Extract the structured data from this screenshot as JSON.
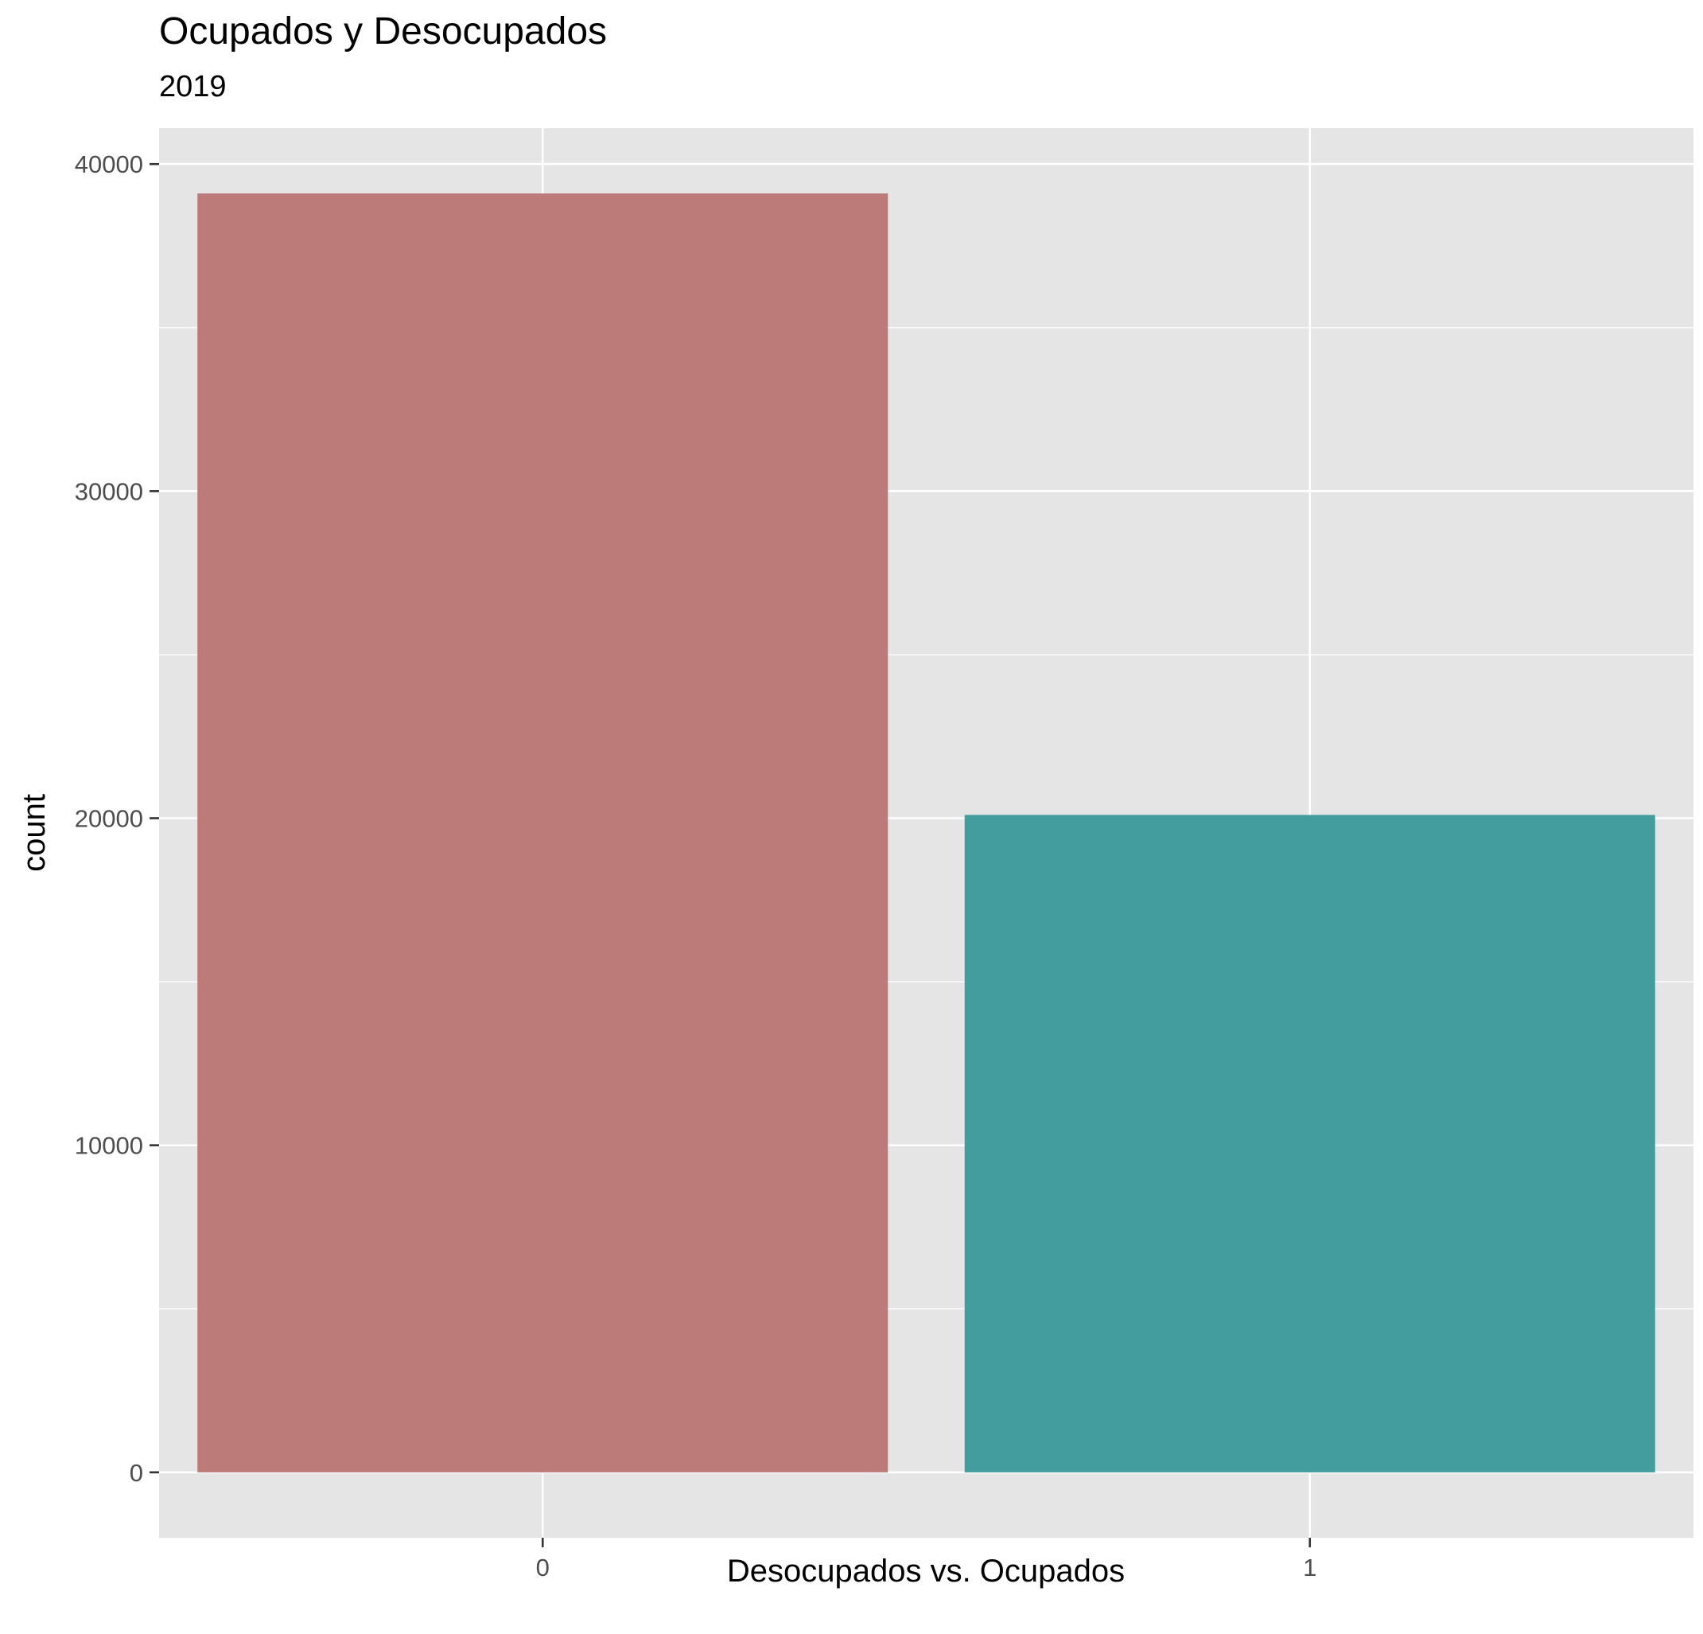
{
  "chart_data": {
    "type": "bar",
    "title": "Ocupados y Desocupados",
    "subtitle": "2019",
    "xlabel": "Desocupados vs. Ocupados",
    "ylabel": "count",
    "categories": [
      "0",
      "1"
    ],
    "values": [
      39100,
      20100
    ],
    "colors": [
      "#BC7A78",
      "#439C9D"
    ],
    "ylim": [
      -2000,
      41100
    ],
    "yticks": [
      0,
      10000,
      20000,
      30000,
      40000
    ],
    "yticklabels": [
      "0",
      "10000",
      "20000",
      "30000",
      "40000"
    ],
    "grid": true,
    "legend": "none",
    "panel_background": "#E5E5E5",
    "grid_color": "#FFFFFF"
  }
}
